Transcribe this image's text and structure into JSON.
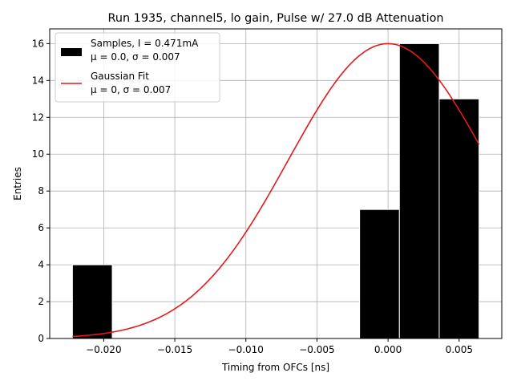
{
  "chart_data": {
    "type": "bar",
    "title": "Run 1935, channel5, lo gain, Pulse w/ 27.0 dB Attenuation",
    "xlabel": "Timing from OFCs [ns]",
    "ylabel": "Entries",
    "xlim": [
      -0.0238,
      0.008
    ],
    "ylim": [
      0,
      16.8
    ],
    "grid": true,
    "legend_position": "upper-left",
    "x_ticks": [
      {
        "value": -0.02,
        "label": "−0.020"
      },
      {
        "value": -0.015,
        "label": "−0.015"
      },
      {
        "value": -0.01,
        "label": "−0.010"
      },
      {
        "value": -0.005,
        "label": "−0.005"
      },
      {
        "value": 0.0,
        "label": "0.000"
      },
      {
        "value": 0.005,
        "label": "0.005"
      }
    ],
    "y_ticks": [
      {
        "value": 0,
        "label": "0"
      },
      {
        "value": 2,
        "label": "2"
      },
      {
        "value": 4,
        "label": "4"
      },
      {
        "value": 6,
        "label": "6"
      },
      {
        "value": 8,
        "label": "8"
      },
      {
        "value": 10,
        "label": "10"
      },
      {
        "value": 12,
        "label": "12"
      },
      {
        "value": 14,
        "label": "14"
      },
      {
        "value": 16,
        "label": "16"
      }
    ],
    "histogram": {
      "name": "Samples, I = 0.471mA",
      "stats": "μ = 0.0, σ = 0.007",
      "color": "#000000",
      "bins": [
        {
          "x0": -0.0222,
          "x1": -0.0194,
          "count": 4
        },
        {
          "x0": -0.002,
          "x1": 0.0008,
          "count": 7
        },
        {
          "x0": 0.0008,
          "x1": 0.0036,
          "count": 16
        },
        {
          "x0": 0.0036,
          "x1": 0.0064,
          "count": 13
        }
      ]
    },
    "fit": {
      "name": "Gaussian Fit",
      "stats": "μ = 0, σ = 0.007",
      "color": "#e41a1c",
      "mu": 0.0,
      "sigma": 0.007,
      "amplitude": 16.0,
      "x_range": [
        -0.0222,
        0.0064
      ]
    }
  }
}
